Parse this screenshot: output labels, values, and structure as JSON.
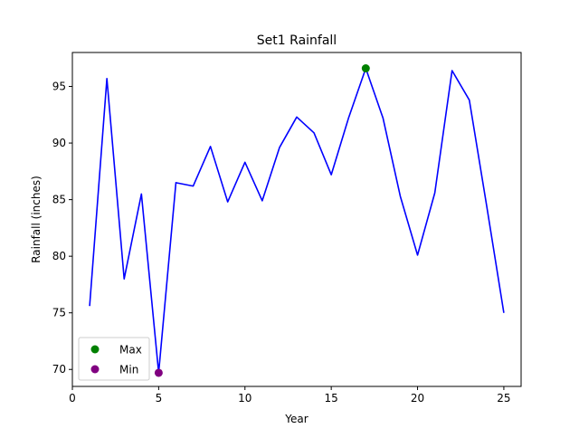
{
  "chart_data": {
    "type": "line",
    "title": "Set1 Rainfall",
    "xlabel": "Year",
    "ylabel": "Rainfall (inches)",
    "xlim": [
      0,
      26
    ],
    "ylim": [
      68.5,
      98
    ],
    "x_ticks": [
      0,
      5,
      10,
      15,
      20,
      25
    ],
    "y_ticks": [
      70,
      75,
      80,
      85,
      90,
      95
    ],
    "grid": false,
    "legend_position": "lower-left",
    "series": [
      {
        "color": "#0000ff",
        "x": [
          1,
          2,
          3,
          4,
          5,
          6,
          7,
          8,
          9,
          10,
          11,
          12,
          13,
          14,
          15,
          16,
          17,
          18,
          19,
          20,
          21,
          22,
          23,
          24,
          25
        ],
        "y": [
          75.6,
          95.7,
          78.0,
          85.5,
          69.7,
          86.5,
          86.2,
          89.7,
          84.8,
          88.3,
          84.9,
          89.6,
          92.3,
          90.9,
          87.2,
          92.2,
          96.6,
          92.2,
          85.3,
          80.1,
          85.6,
          96.4,
          93.8,
          84.5,
          75.0
        ]
      }
    ],
    "markers": [
      {
        "label": "Max",
        "x": 17,
        "y": 96.6,
        "color": "#008000"
      },
      {
        "label": "Min",
        "x": 5,
        "y": 69.7,
        "color": "#800080"
      }
    ]
  }
}
